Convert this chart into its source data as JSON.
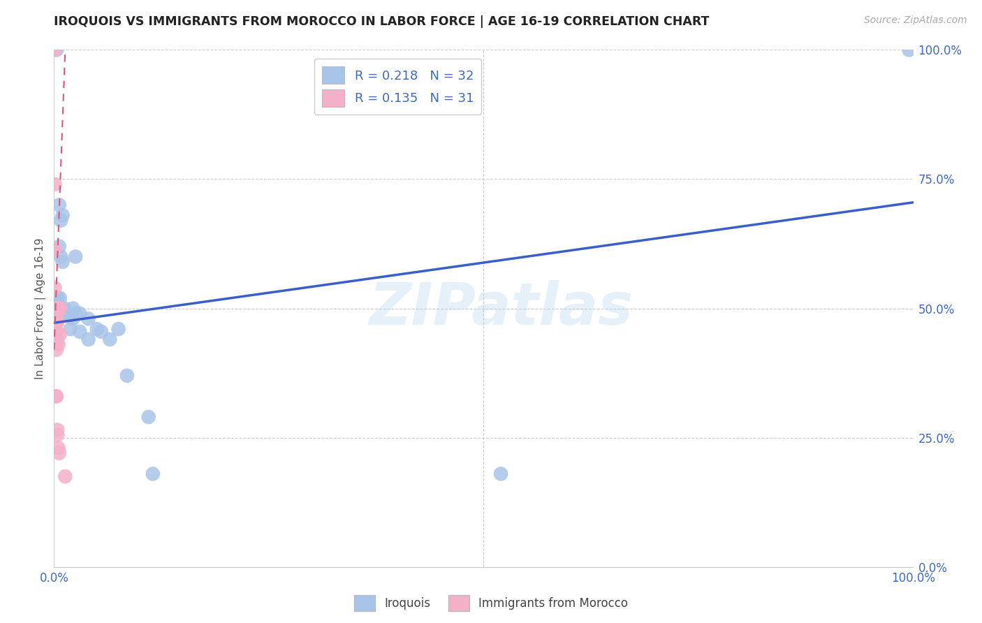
{
  "title": "IROQUOIS VS IMMIGRANTS FROM MOROCCO IN LABOR FORCE | AGE 16-19 CORRELATION CHART",
  "source_text": "Source: ZipAtlas.com",
  "ylabel": "In Labor Force | Age 16-19",
  "xlim": [
    0.0,
    1.0
  ],
  "ylim": [
    0.0,
    1.0
  ],
  "ytick_positions": [
    0.0,
    0.25,
    0.5,
    0.75,
    1.0
  ],
  "ytick_labels_right": [
    "0.0%",
    "25.0%",
    "50.0%",
    "75.0%",
    "100.0%"
  ],
  "xtick_positions": [
    0.0,
    1.0
  ],
  "xtick_labels": [
    "0.0%",
    "100.0%"
  ],
  "grid_color": "#cccccc",
  "background_color": "#ffffff",
  "watermark_text": "ZIPatlas",
  "legend_labels": [
    "Iroquois",
    "Immigrants from Morocco"
  ],
  "iroquois_color": "#a8c4e8",
  "morocco_color": "#f4b0c8",
  "iroquois_R": 0.218,
  "iroquois_N": 32,
  "morocco_R": 0.135,
  "morocco_N": 31,
  "iroquois_line_color": "#3a5fc8",
  "morocco_line_color": "#d85878",
  "iroquois_scatter_x": [
    0.003,
    0.003,
    0.004,
    0.006,
    0.006,
    0.007,
    0.008,
    0.008,
    0.01,
    0.01,
    0.012,
    0.013,
    0.015,
    0.018,
    0.019,
    0.022,
    0.022,
    0.025,
    0.025,
    0.03,
    0.03,
    0.04,
    0.04,
    0.05,
    0.055,
    0.065,
    0.075,
    0.085,
    0.11,
    0.115,
    0.52,
    0.995
  ],
  "iroquois_scatter_y": [
    1.0,
    0.52,
    0.52,
    0.7,
    0.62,
    0.52,
    0.67,
    0.6,
    0.68,
    0.59,
    0.5,
    0.495,
    0.49,
    0.485,
    0.46,
    0.5,
    0.48,
    0.6,
    0.49,
    0.49,
    0.455,
    0.48,
    0.44,
    0.46,
    0.455,
    0.44,
    0.46,
    0.37,
    0.29,
    0.18,
    0.18,
    1.0
  ],
  "morocco_scatter_x": [
    0.001,
    0.001,
    0.001,
    0.001,
    0.001,
    0.001,
    0.001,
    0.001,
    0.001,
    0.002,
    0.002,
    0.002,
    0.002,
    0.003,
    0.003,
    0.003,
    0.003,
    0.003,
    0.003,
    0.004,
    0.004,
    0.004,
    0.004,
    0.004,
    0.005,
    0.005,
    0.005,
    0.006,
    0.007,
    0.007,
    0.013
  ],
  "morocco_scatter_y": [
    1.0,
    0.74,
    0.615,
    0.54,
    0.5,
    0.495,
    0.49,
    0.47,
    0.46,
    0.5,
    0.475,
    0.455,
    0.33,
    0.5,
    0.49,
    0.47,
    0.455,
    0.42,
    0.33,
    0.5,
    0.475,
    0.44,
    0.265,
    0.255,
    0.5,
    0.43,
    0.23,
    0.22,
    0.5,
    0.45,
    0.175
  ],
  "iroquois_line_x0": 0.0,
  "iroquois_line_x1": 1.0,
  "iroquois_line_y0": 0.472,
  "iroquois_line_y1": 0.705,
  "morocco_line_x0": 0.0,
  "morocco_line_x1": 0.013,
  "morocco_line_y0": 0.42,
  "morocco_line_y1": 1.0
}
